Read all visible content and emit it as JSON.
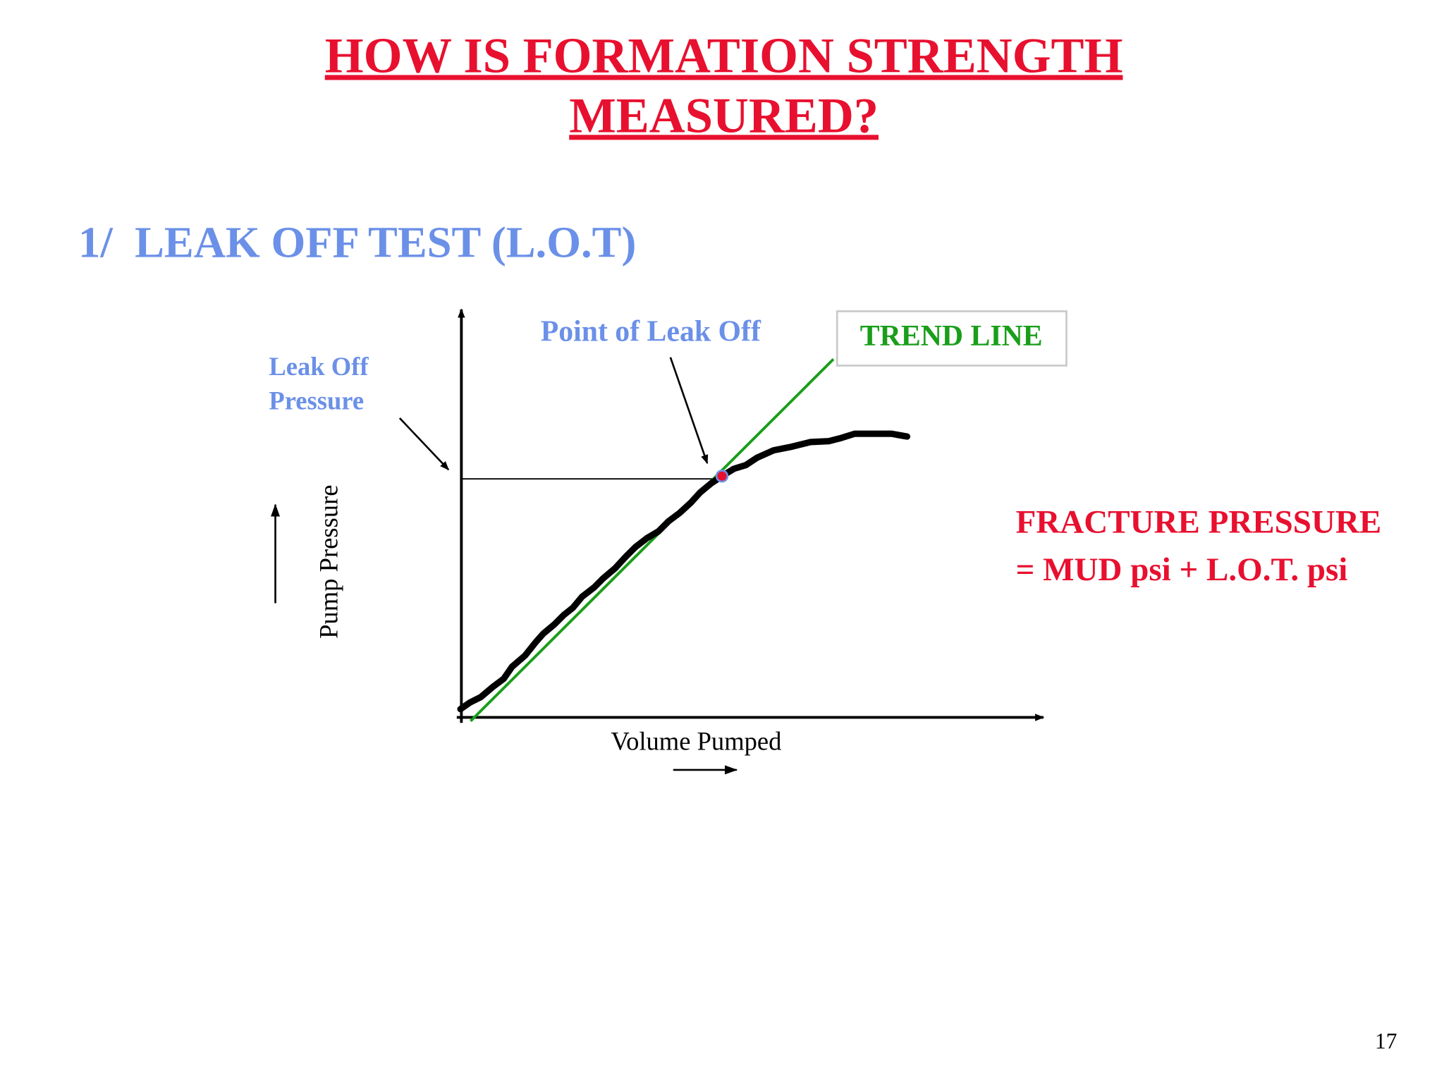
{
  "header": {
    "title": [
      "HOW IS FORMATION STRENGTH",
      "MEASURED?"
    ],
    "subtitle": "1/  LEAK OFF TEST (L.O.T)"
  },
  "diagram": {
    "leak_off_pressure": [
      "Leak Off",
      "Pressure"
    ],
    "point_of_leak_off": "Point of Leak Off",
    "trend_line": "TREND LINE",
    "y_axis_label": "Pump Pressure",
    "x_axis_label": "Volume Pumped"
  },
  "formula": [
    "FRACTURE PRESSURE",
    "= MUD psi + L.O.T. psi"
  ],
  "page_number": "17"
}
